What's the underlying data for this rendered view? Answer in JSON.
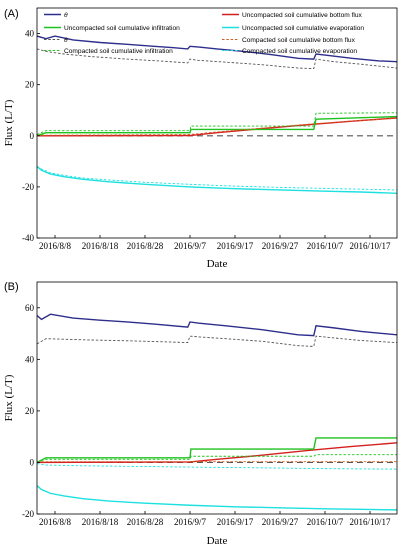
{
  "chart_data": [
    {
      "panel": "(A)",
      "type": "line",
      "xlabel": "Date",
      "ylabel": "Flux (L/T)",
      "ylim": [
        -40,
        50
      ],
      "yticks": [
        -40,
        -20,
        0,
        20,
        40
      ],
      "x_tick_labels": [
        "2016/8/8",
        "2016/8/18",
        "2016/8/28",
        "2016/9/7",
        "2016/9/17",
        "2016/9/27",
        "2016/10/7",
        "2016/10/17"
      ],
      "x_tick_days": [
        4,
        14,
        24,
        34,
        44,
        54,
        64,
        74
      ],
      "xlim_days": [
        0,
        80
      ],
      "legend_position": "top",
      "series": [
        {
          "name": "θ",
          "color": "#2e2e8c",
          "style": "solid",
          "x": [
            0,
            2,
            4,
            8,
            14,
            20,
            26,
            30,
            33.5,
            34,
            36,
            40,
            46,
            52,
            58,
            61.5,
            62,
            64,
            70,
            76,
            80
          ],
          "y": [
            39,
            38,
            39,
            37.5,
            36.5,
            35.8,
            35,
            34.5,
            34,
            35,
            34.7,
            34,
            33,
            31.8,
            30.3,
            30,
            32,
            31.6,
            30.3,
            29.3,
            29
          ]
        },
        {
          "name": "Uncompacted soil cumulative bottom flux",
          "color": "#d62020",
          "style": "solid",
          "x": [
            0,
            34,
            40,
            50,
            60,
            70,
            80
          ],
          "y": [
            0,
            0.1,
            1.2,
            2.8,
            4.3,
            5.7,
            7
          ]
        },
        {
          "name": "Uncompacted soil cumulative infiltration",
          "color": "#1ec21e",
          "style": "solid",
          "x": [
            0,
            2,
            34,
            34.2,
            61.5,
            62,
            80
          ],
          "y": [
            0,
            1.2,
            1.2,
            2.5,
            2.5,
            6.5,
            7.5
          ]
        },
        {
          "name": "Uncompacted soil cumulative evaporation",
          "color": "#1ee0e0",
          "style": "solid",
          "x": [
            0,
            1,
            3,
            6,
            10,
            16,
            24,
            34,
            44,
            54,
            64,
            72,
            80
          ],
          "y": [
            -12,
            -13.5,
            -15,
            -16,
            -17,
            -18,
            -19,
            -20,
            -20.7,
            -21.2,
            -21.7,
            -22,
            -22.5
          ]
        },
        {
          "name": "θ",
          "color": "#555555",
          "style": "dashed",
          "x": [
            0,
            2,
            6,
            12,
            20,
            28,
            33.5,
            34,
            36,
            42,
            50,
            58,
            61.5,
            62,
            66,
            72,
            80
          ],
          "y": [
            34,
            33,
            32,
            31,
            30,
            29.2,
            28.5,
            30,
            29.5,
            28.8,
            27.8,
            26.5,
            26.3,
            30,
            29,
            28,
            26.5
          ]
        },
        {
          "name": "Compacted soil cumulative bottom flux",
          "color": "#d06020",
          "style": "dashed",
          "x": [
            0,
            34,
            40,
            50,
            60,
            70,
            80
          ],
          "y": [
            0.2,
            0.5,
            1.5,
            3,
            4.5,
            5.8,
            6.8
          ]
        },
        {
          "name": "Compacted soil cumulative infiltration",
          "color": "#1ec21e",
          "style": "dashed",
          "x": [
            0,
            2,
            34,
            34.2,
            61.5,
            62,
            80
          ],
          "y": [
            0.5,
            2,
            2,
            3.8,
            3.8,
            8.8,
            9
          ]
        },
        {
          "name": "Compacted soil cumulative evaporation",
          "color": "#1ee0e0",
          "style": "dashed",
          "x": [
            0,
            1,
            3,
            6,
            10,
            16,
            24,
            34,
            44,
            54,
            64,
            72,
            80
          ],
          "y": [
            -12,
            -13,
            -14.5,
            -15.5,
            -16.5,
            -17.3,
            -18.2,
            -19,
            -19.7,
            -20.2,
            -20.6,
            -20.9,
            -21.2
          ]
        },
        {
          "name": "",
          "color": "#555555",
          "style": "dashed-long",
          "x": [
            0,
            80
          ],
          "y": [
            0,
            0
          ]
        }
      ]
    },
    {
      "panel": "(B)",
      "type": "line",
      "xlabel": "Date",
      "ylabel": "Flux (L/T)",
      "ylim": [
        -20,
        70
      ],
      "yticks": [
        -20,
        0,
        20,
        40,
        60
      ],
      "x_tick_labels": [
        "2016/8/8",
        "2016/8/18",
        "2016/8/28",
        "2016/9/7",
        "2016/9/17",
        "2016/9/27",
        "2016/10/7",
        "2016/10/17"
      ],
      "x_tick_days": [
        4,
        14,
        24,
        34,
        44,
        54,
        64,
        74
      ],
      "xlim_days": [
        0,
        80
      ],
      "series": [
        {
          "name": "θ",
          "color": "#2e2e8c",
          "style": "solid",
          "x": [
            0,
            1,
            3,
            8,
            14,
            20,
            26,
            33.5,
            34,
            36,
            42,
            50,
            58,
            61.5,
            62,
            66,
            72,
            80
          ],
          "y": [
            57,
            55.5,
            57.5,
            56,
            55.2,
            54.5,
            53.7,
            52.5,
            54.5,
            54,
            53,
            51.5,
            49.5,
            49.2,
            53,
            52.2,
            50.8,
            49.5
          ]
        },
        {
          "name": "Uncompacted soil cumulative bottom flux",
          "color": "#d62020",
          "style": "solid",
          "x": [
            0,
            34,
            40,
            50,
            60,
            70,
            80
          ],
          "y": [
            0,
            0.2,
            1.2,
            2.8,
            4.6,
            6.2,
            7.6
          ]
        },
        {
          "name": "Uncompacted soil cumulative infiltration",
          "color": "#1ec21e",
          "style": "solid",
          "x": [
            0,
            2,
            34,
            34.2,
            61.5,
            62,
            80
          ],
          "y": [
            0,
            1.8,
            1.8,
            5.2,
            5.2,
            9.5,
            9.5
          ]
        },
        {
          "name": "Uncompacted soil cumulative evaporation",
          "color": "#1ee0e0",
          "style": "solid",
          "x": [
            0,
            1,
            3,
            6,
            10,
            16,
            24,
            34,
            44,
            54,
            64,
            72,
            80
          ],
          "y": [
            -9,
            -10.5,
            -12,
            -13,
            -14,
            -15,
            -15.8,
            -16.6,
            -17.2,
            -17.6,
            -18,
            -18.2,
            -18.4
          ]
        },
        {
          "name": "θ",
          "color": "#555555",
          "style": "dashed",
          "x": [
            0,
            2,
            6,
            12,
            20,
            28,
            33.5,
            34,
            36,
            42,
            50,
            58,
            61.5,
            62,
            66,
            72,
            80
          ],
          "y": [
            46,
            48,
            47.8,
            47.5,
            47.2,
            46.8,
            46.5,
            49,
            48.7,
            48,
            47,
            45.3,
            45,
            49,
            48.3,
            47.3,
            46.5
          ]
        },
        {
          "name": "Compacted soil cumulative bottom flux",
          "color": "#d06020",
          "style": "dashed",
          "x": [
            0,
            80
          ],
          "y": [
            0.3,
            0.3
          ]
        },
        {
          "name": "Compacted soil cumulative infiltration",
          "color": "#1ec21e",
          "style": "dashed",
          "x": [
            0,
            2,
            34,
            34.2,
            61.5,
            62,
            80
          ],
          "y": [
            0.2,
            1.2,
            1.2,
            2.4,
            2.4,
            3,
            3
          ]
        },
        {
          "name": "Compacted soil cumulative evaporation",
          "color": "#1ee0e0",
          "style": "dashed",
          "x": [
            0,
            2,
            10,
            20,
            34,
            50,
            64,
            80
          ],
          "y": [
            -0.5,
            -1,
            -1.3,
            -1.5,
            -1.8,
            -2.1,
            -2.4,
            -2.6
          ]
        },
        {
          "name": "",
          "color": "#555555",
          "style": "dashed-long",
          "x": [
            0,
            80
          ],
          "y": [
            0,
            0
          ]
        }
      ]
    }
  ]
}
